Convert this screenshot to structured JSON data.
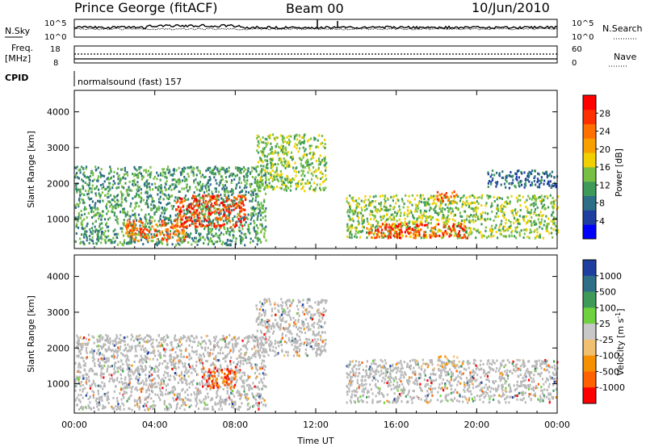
{
  "header": {
    "station": "Prince George (fitACF)",
    "beam": "Beam 00",
    "date": "10/Jun/2010"
  },
  "noise_panel": {
    "left_label": "N.Sky",
    "right_label": "N.Search",
    "left_ticks": [
      "10^5",
      "10^0"
    ],
    "right_ticks": [
      "10^5",
      "10^0"
    ]
  },
  "freq_panel": {
    "label_line1": "Freq.",
    "label_line2": "[MHz]",
    "left_ticks": [
      "18",
      "8"
    ],
    "right_label": "Nave",
    "right_ticks": [
      "60",
      "0"
    ]
  },
  "cpid": {
    "label": "CPID",
    "program": "normalsound (fast) 157"
  },
  "chart_data": [
    {
      "type": "heatmap",
      "title": "",
      "xlabel": "Time UT",
      "ylabel": "Slant Range [km]",
      "x_ticks": [
        "00:00",
        "04:00",
        "08:00",
        "12:00",
        "16:00",
        "20:00",
        "00:00"
      ],
      "y_ticks": [
        "1000",
        "2000",
        "3000",
        "4000"
      ],
      "xlim_hours": [
        0,
        24
      ],
      "ylim_km": [
        180,
        4600
      ],
      "colorbar": {
        "label": "Power [dB]",
        "ticks": [
          "4",
          "8",
          "12",
          "16",
          "20",
          "24",
          "28"
        ],
        "range": [
          0,
          30
        ],
        "colors": [
          "#0000ff",
          "#1f3fa0",
          "#2e6e86",
          "#3f9a5a",
          "#78c044",
          "#f0d000",
          "#f7a000",
          "#ff7000",
          "#ff3000",
          "#ff0000"
        ]
      },
      "echo_regions": [
        {
          "t_start": 0.0,
          "t_end": 9.5,
          "range_km": [
            300,
            2500
          ],
          "power_db": 10
        },
        {
          "t_start": 2.5,
          "t_end": 5.5,
          "range_km": [
            400,
            1000
          ],
          "power_db": 22
        },
        {
          "t_start": 5.0,
          "t_end": 8.5,
          "range_km": [
            800,
            1700
          ],
          "power_db": 26
        },
        {
          "t_start": 9.0,
          "t_end": 12.5,
          "range_km": [
            1800,
            3400
          ],
          "power_db": 14
        },
        {
          "t_start": 13.5,
          "t_end": 24.0,
          "range_km": [
            500,
            1700
          ],
          "power_db": 14
        },
        {
          "t_start": 14.5,
          "t_end": 19.5,
          "range_km": [
            500,
            900
          ],
          "power_db": 26
        },
        {
          "t_start": 18.0,
          "t_end": 19.0,
          "range_km": [
            1500,
            1800
          ],
          "power_db": 24
        },
        {
          "t_start": 20.5,
          "t_end": 24.0,
          "range_km": [
            1900,
            2400
          ],
          "power_db": 8
        }
      ]
    },
    {
      "type": "heatmap",
      "title": "",
      "xlabel": "Time UT",
      "ylabel": "Slant Range [km]",
      "x_ticks": [
        "00:00",
        "04:00",
        "08:00",
        "12:00",
        "16:00",
        "20:00",
        "00:00"
      ],
      "y_ticks": [
        "1000",
        "2000",
        "3000",
        "4000"
      ],
      "xlim_hours": [
        0,
        24
      ],
      "ylim_km": [
        180,
        4600
      ],
      "colorbar": {
        "label": "Velocity [m s",
        "label_exponent": "-1",
        "label_close": "]",
        "ticks": [
          "1000",
          "500",
          "100",
          "25",
          "-25",
          "-100",
          "-500",
          "-1000"
        ],
        "colors": [
          "#1f3fa0",
          "#2e6e86",
          "#3f9a5a",
          "#6fd040",
          "#c8c8c8",
          "#f0c070",
          "#f79000",
          "#ff6000",
          "#ff0000"
        ]
      },
      "ground_scatter_color": "#b8b8b8",
      "echo_regions": [
        {
          "t_start": 0.0,
          "t_end": 9.5,
          "range_km": [
            300,
            2400
          ],
          "velocity": 0
        },
        {
          "t_start": 6.3,
          "t_end": 8.0,
          "range_km": [
            900,
            1500
          ],
          "velocity": -200
        },
        {
          "t_start": 9.0,
          "t_end": 12.5,
          "range_km": [
            1800,
            3400
          ],
          "velocity": 0
        },
        {
          "t_start": 13.5,
          "t_end": 24.0,
          "range_km": [
            500,
            1700
          ],
          "velocity": 0
        },
        {
          "t_start": 18.0,
          "t_end": 19.0,
          "range_km": [
            1500,
            1800
          ],
          "velocity": -100
        }
      ]
    }
  ]
}
